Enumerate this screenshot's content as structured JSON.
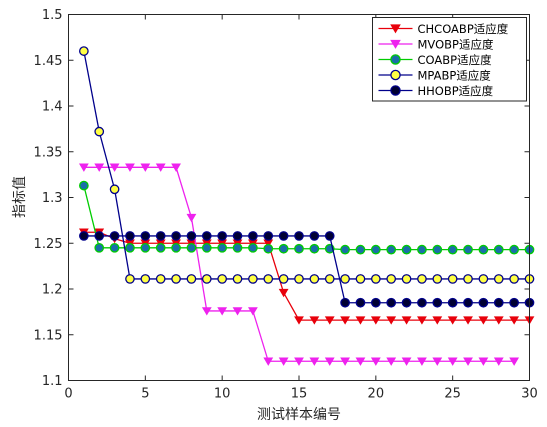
{
  "chart_data": {
    "type": "line",
    "xlabel": "测试样本编号",
    "ylabel": "指标值",
    "xlim": [
      0,
      30
    ],
    "ylim": [
      1.1,
      1.5
    ],
    "xticks": [
      0,
      5,
      10,
      15,
      20,
      25,
      30
    ],
    "yticks": [
      1.1,
      1.15,
      1.2,
      1.25,
      1.3,
      1.35,
      1.4,
      1.45,
      1.5
    ],
    "grid": false,
    "legend_position": "top-right",
    "series": [
      {
        "name": "CHCOABP适应度",
        "color": "#e8000b",
        "marker": "triangle-down",
        "x": [
          1,
          2,
          3,
          4,
          5,
          6,
          7,
          8,
          9,
          10,
          11,
          12,
          13,
          14,
          15,
          16,
          17,
          18,
          19,
          20,
          21,
          22,
          23,
          24,
          25,
          26,
          27,
          28,
          29,
          30
        ],
        "values": [
          1.262,
          1.262,
          1.255,
          1.25,
          1.25,
          1.25,
          1.25,
          1.25,
          1.25,
          1.25,
          1.25,
          1.25,
          1.25,
          1.196,
          1.166,
          1.166,
          1.166,
          1.166,
          1.166,
          1.166,
          1.166,
          1.166,
          1.166,
          1.166,
          1.166,
          1.166,
          1.166,
          1.166,
          1.166,
          1.166
        ]
      },
      {
        "name": "MVOBP适应度",
        "color": "#ee22ee",
        "marker": "triangle-down",
        "x": [
          1,
          2,
          3,
          4,
          5,
          6,
          7,
          8,
          9,
          10,
          11,
          12,
          13,
          14,
          15,
          16,
          17,
          18,
          19,
          20,
          21,
          22,
          23,
          24,
          25,
          26,
          27,
          28,
          29
        ],
        "values": [
          1.333,
          1.333,
          1.333,
          1.333,
          1.333,
          1.333,
          1.333,
          1.278,
          1.176,
          1.176,
          1.176,
          1.176,
          1.121,
          1.121,
          1.121,
          1.121,
          1.121,
          1.121,
          1.121,
          1.121,
          1.121,
          1.121,
          1.121,
          1.121,
          1.121,
          1.121,
          1.121,
          1.121,
          1.121
        ]
      },
      {
        "name": "COABP适应度",
        "color": "#00cc00",
        "marker": "circle",
        "marker_fill": "#1a6fa8",
        "x": [
          1,
          2,
          3,
          4,
          5,
          6,
          7,
          8,
          9,
          10,
          11,
          12,
          13,
          14,
          15,
          16,
          17,
          18,
          19,
          20,
          21,
          22,
          23,
          24,
          25,
          26,
          27,
          28,
          29,
          30
        ],
        "values": [
          1.313,
          1.245,
          1.245,
          1.245,
          1.245,
          1.245,
          1.245,
          1.245,
          1.245,
          1.245,
          1.245,
          1.245,
          1.244,
          1.244,
          1.244,
          1.244,
          1.244,
          1.243,
          1.243,
          1.243,
          1.243,
          1.243,
          1.243,
          1.243,
          1.243,
          1.243,
          1.243,
          1.243,
          1.243,
          1.243
        ]
      },
      {
        "name": "MPABP适应度",
        "color": "#00008b",
        "marker": "circle",
        "marker_fill": "#ffff44",
        "x": [
          1,
          2,
          3,
          4,
          5,
          6,
          7,
          8,
          9,
          10,
          11,
          12,
          13,
          14,
          15,
          16,
          17,
          18,
          19,
          20,
          21,
          22,
          23,
          24,
          25,
          26,
          27,
          28,
          29,
          30
        ],
        "values": [
          1.46,
          1.372,
          1.309,
          1.211,
          1.211,
          1.211,
          1.211,
          1.211,
          1.211,
          1.211,
          1.211,
          1.211,
          1.211,
          1.211,
          1.211,
          1.211,
          1.211,
          1.211,
          1.211,
          1.211,
          1.211,
          1.211,
          1.211,
          1.211,
          1.211,
          1.211,
          1.211,
          1.211,
          1.211,
          1.211
        ]
      },
      {
        "name": "HHOBP适应度",
        "color": "#00008b",
        "marker": "circle",
        "marker_fill": "#000033",
        "x": [
          1,
          2,
          3,
          4,
          5,
          6,
          7,
          8,
          9,
          10,
          11,
          12,
          13,
          14,
          15,
          16,
          17,
          18,
          19,
          20,
          21,
          22,
          23,
          24,
          25,
          26,
          27,
          28,
          29,
          30
        ],
        "values": [
          1.258,
          1.258,
          1.258,
          1.258,
          1.258,
          1.258,
          1.258,
          1.258,
          1.258,
          1.258,
          1.258,
          1.258,
          1.258,
          1.258,
          1.258,
          1.258,
          1.258,
          1.185,
          1.185,
          1.185,
          1.185,
          1.185,
          1.185,
          1.185,
          1.185,
          1.185,
          1.185,
          1.185,
          1.185,
          1.185
        ]
      }
    ]
  }
}
